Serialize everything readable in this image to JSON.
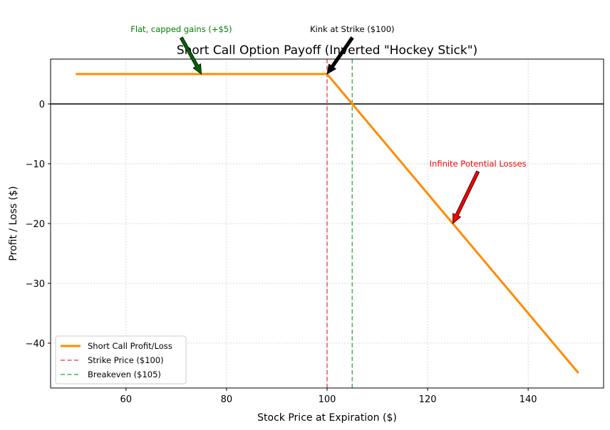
{
  "chart_data": {
    "type": "line",
    "title": "Short Call Option Payoff (Inverted \"Hockey Stick\")",
    "xlabel": "Stock Price at Expiration ($)",
    "ylabel": "Profit / Loss ($)",
    "xlim": [
      45,
      155
    ],
    "ylim": [
      -47.5,
      7.5
    ],
    "xticks": [
      60,
      80,
      100,
      120,
      140
    ],
    "yticks": [
      0,
      -10,
      -20,
      -30,
      -40
    ],
    "grid": true,
    "legend_position": "lower-left",
    "series": [
      {
        "name": "Short Call Profit/Loss",
        "style": "solid",
        "color": "#ff8c00",
        "x": [
          50,
          100,
          150
        ],
        "y": [
          5,
          5,
          -45
        ]
      }
    ],
    "vlines": [
      {
        "name": "Strike Price ($100)",
        "x": 100,
        "color": "#ff4d4d",
        "style": "dashed"
      },
      {
        "name": "Breakeven ($105)",
        "x": 105,
        "color": "#4caf50",
        "style": "dashed"
      }
    ],
    "hlines": [
      {
        "y": 0,
        "color": "#000000",
        "style": "solid"
      }
    ],
    "annotations": [
      {
        "text": "Flat, capped gains (+$5)",
        "x": 75,
        "y": 5,
        "text_x": 71,
        "text_y": 12.5,
        "color": "#008000",
        "arrow_color": "#006400"
      },
      {
        "text": "Kink at Strike ($100)",
        "x": 100,
        "y": 5,
        "text_x": 105,
        "text_y": 12.5,
        "color": "#000000",
        "arrow_color": "#000000"
      },
      {
        "text": "Infinite Potential Losses",
        "x": 125,
        "y": -20,
        "text_x": 130,
        "text_y": -10,
        "color": "#ff0000",
        "arrow_color": "#ff0000"
      }
    ]
  }
}
